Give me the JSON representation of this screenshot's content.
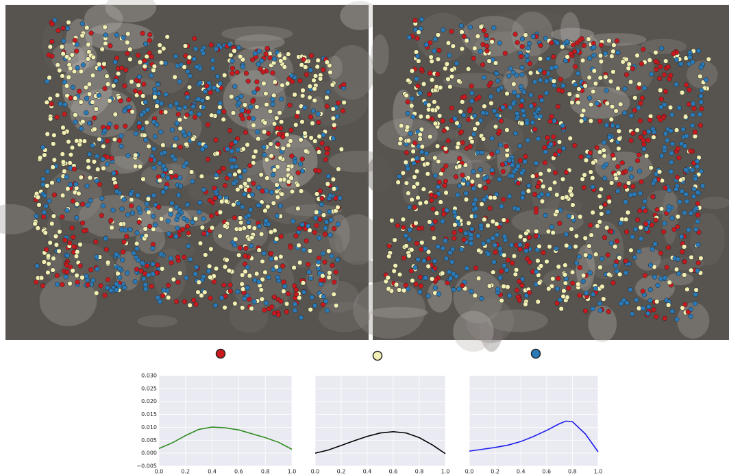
{
  "chart_data": [
    {
      "type": "line",
      "marker_color": "#c8191e",
      "xlim": [
        0,
        1
      ],
      "ylim": [
        -0.005,
        0.03
      ],
      "xticks": [
        {
          "value": 0,
          "label": "0.0"
        },
        {
          "value": 0.2,
          "label": "0.2"
        },
        {
          "value": 0.4,
          "label": "0.4"
        },
        {
          "value": 0.6,
          "label": "0.6"
        },
        {
          "value": 0.8,
          "label": "0.8"
        },
        {
          "value": 1,
          "label": "1.0"
        }
      ],
      "yticks": [
        {
          "value": -0.005,
          "label": "−0.005"
        },
        {
          "value": 0,
          "label": "0.000"
        },
        {
          "value": 0.005,
          "label": "0.005"
        },
        {
          "value": 0.01,
          "label": "0.010"
        },
        {
          "value": 0.015,
          "label": "0.015"
        },
        {
          "value": 0.02,
          "label": "0.020"
        },
        {
          "value": 0.025,
          "label": "0.025"
        },
        {
          "value": 0.03,
          "label": "0.030"
        }
      ],
      "x": [
        0,
        0.1,
        0.2,
        0.3,
        0.4,
        0.5,
        0.6,
        0.7,
        0.8,
        0.9,
        1
      ],
      "series": [
        {
          "color": "#2e8b1e",
          "values": [
            0.0018,
            0.004,
            0.0068,
            0.0092,
            0.0101,
            0.0098,
            0.009,
            0.0075,
            0.006,
            0.0042,
            0.0015
          ]
        }
      ]
    },
    {
      "type": "line",
      "marker_color": "#f2f0b4",
      "xlim": [
        0,
        1
      ],
      "ylim": [
        -0.005,
        0.03
      ],
      "xticks": [
        {
          "value": 0,
          "label": "0.0"
        },
        {
          "value": 0.2,
          "label": "0.2"
        },
        {
          "value": 0.4,
          "label": "0.4"
        },
        {
          "value": 0.6,
          "label": "0.6"
        },
        {
          "value": 0.8,
          "label": "0.8"
        },
        {
          "value": 1,
          "label": "1.0"
        }
      ],
      "x": [
        0,
        0.1,
        0.2,
        0.3,
        0.4,
        0.5,
        0.6,
        0.7,
        0.8,
        0.9,
        1
      ],
      "series": [
        {
          "color": "#000000",
          "values": [
            0.0,
            0.0012,
            0.003,
            0.0048,
            0.0065,
            0.0078,
            0.0083,
            0.0078,
            0.006,
            0.0032,
            -0.0002
          ]
        }
      ]
    },
    {
      "type": "line",
      "marker_color": "#2a7ab8",
      "xlim": [
        0,
        1
      ],
      "ylim": [
        -0.005,
        0.03
      ],
      "xticks": [
        {
          "value": 0,
          "label": "0.0"
        },
        {
          "value": 0.2,
          "label": "0.2"
        },
        {
          "value": 0.4,
          "label": "0.4"
        },
        {
          "value": 0.6,
          "label": "0.6"
        },
        {
          "value": 0.8,
          "label": "0.8"
        },
        {
          "value": 1,
          "label": "1.0"
        }
      ],
      "x": [
        0,
        0.1,
        0.2,
        0.3,
        0.4,
        0.5,
        0.6,
        0.7,
        0.75,
        0.8,
        0.9,
        1
      ],
      "series": [
        {
          "color": "#1a1aee",
          "values": [
            0.0008,
            0.0015,
            0.0022,
            0.0031,
            0.0045,
            0.0065,
            0.0088,
            0.0114,
            0.0124,
            0.0122,
            0.0075,
            0.0005
          ]
        }
      ]
    }
  ]
}
